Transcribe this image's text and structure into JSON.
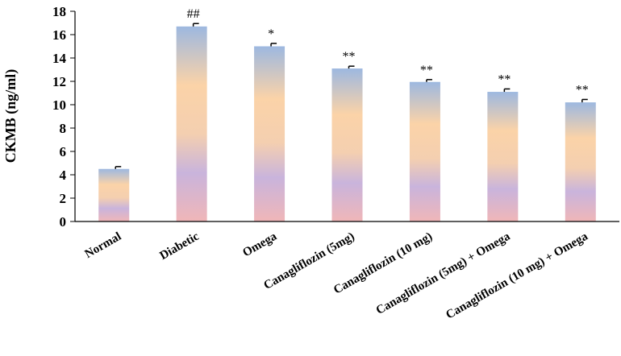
{
  "chart_data": {
    "type": "bar",
    "title": "",
    "xlabel": "",
    "ylabel": "CKMB  (ng/ml)",
    "ylim": [
      0,
      18
    ],
    "yticks": [
      0,
      2,
      4,
      6,
      8,
      10,
      12,
      14,
      16,
      18
    ],
    "grid": false,
    "categories": [
      "Normal",
      "Diabetic",
      "Omega",
      "Canagliflozin (5mg)",
      "Canagliflozin (10 mg)",
      "Canagliflozin (5mg) + Omega",
      "Canagliflozin (10 mg) + Omega"
    ],
    "values": [
      4.5,
      16.7,
      15.0,
      13.1,
      11.95,
      11.1,
      10.2
    ],
    "errors": [
      0.2,
      0.25,
      0.25,
      0.2,
      0.2,
      0.25,
      0.25
    ],
    "significance": [
      "",
      "##",
      "*",
      "**",
      "**",
      "**",
      "**"
    ],
    "colors": {
      "gradient_top": "#9db8e0",
      "gradient_mid": "#fbd3a8",
      "gradient_low": "#c9b4dc",
      "gradient_bottom": "#f0b6b8",
      "axis": "#000000"
    }
  }
}
